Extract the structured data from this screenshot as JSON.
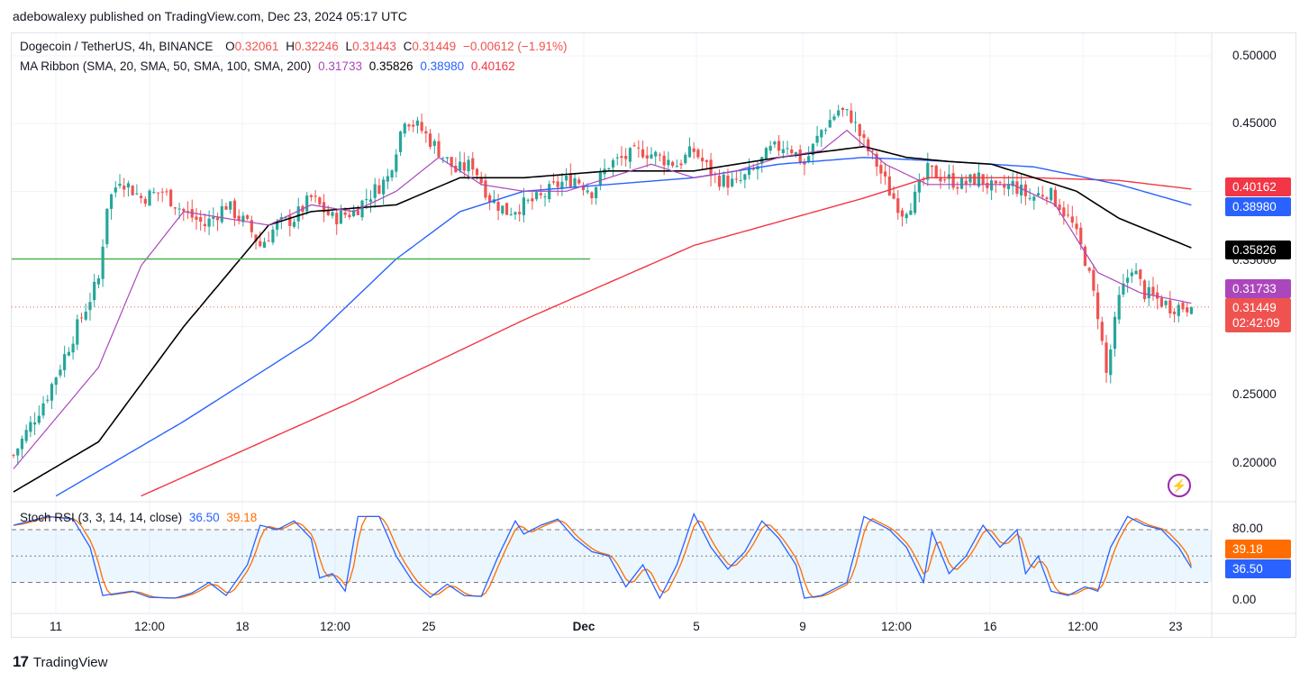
{
  "header": {
    "published": "adebowalexy published on TradingView.com, Dec 23, 2024 05:17 UTC"
  },
  "legend": {
    "symbol": "Dogecoin / TetherUS, 4h, BINANCE",
    "o_label": "O",
    "o": "0.32061",
    "h_label": "H",
    "h": "0.32246",
    "l_label": "L",
    "l": "0.31443",
    "c_label": "C",
    "c": "0.31449",
    "change": "−0.00612 (−1.91%)",
    "ma_title": "MA Ribbon (SMA, 20, SMA, 50, SMA, 100, SMA, 200)",
    "ma20": "0.31733",
    "ma50": "0.35826",
    "ma100": "0.38980",
    "ma200": "0.40162",
    "stoch_title": "Stoch RSI (3, 3, 14, 14, close)",
    "k": "36.50",
    "d": "39.18"
  },
  "price_tags": {
    "ma200": "0.40162",
    "ma100": "0.38980",
    "ma50": "0.35826",
    "ma20": "0.31733",
    "last": "0.31449",
    "countdown": "02:42:09"
  },
  "colors": {
    "up": "#26a69a",
    "down": "#ef5350",
    "ma20": "#ab47bc",
    "ma50": "#000000",
    "ma100": "#2962ff",
    "ma200": "#f23645",
    "support": "#4caf50",
    "k": "#2962ff",
    "d": "#ff6d00"
  },
  "footer": {
    "brand": "TradingView"
  },
  "chart_data": [
    {
      "type": "candlestick",
      "ylim": [
        0.175,
        0.515
      ],
      "y_ticks": [
        "0.50000",
        "0.45000",
        "0.35000",
        "0.25000",
        "0.20000"
      ],
      "x_ticks": [
        "11",
        "12:00",
        "18",
        "12:00",
        "25",
        "Dec",
        "5",
        "9",
        "12:00",
        "16",
        "12:00",
        "23"
      ],
      "anchors_close": [
        [
          0,
          0.205
        ],
        [
          8,
          0.25
        ],
        [
          15,
          0.3
        ],
        [
          20,
          0.335
        ],
        [
          22,
          0.39
        ],
        [
          25,
          0.41
        ],
        [
          30,
          0.395
        ],
        [
          35,
          0.4
        ],
        [
          40,
          0.385
        ],
        [
          45,
          0.375
        ],
        [
          50,
          0.39
        ],
        [
          55,
          0.375
        ],
        [
          58,
          0.36
        ],
        [
          62,
          0.375
        ],
        [
          66,
          0.38
        ],
        [
          70,
          0.395
        ],
        [
          75,
          0.38
        ],
        [
          80,
          0.385
        ],
        [
          83,
          0.395
        ],
        [
          88,
          0.41
        ],
        [
          92,
          0.455
        ],
        [
          96,
          0.445
        ],
        [
          100,
          0.43
        ],
        [
          104,
          0.415
        ],
        [
          108,
          0.42
        ],
        [
          112,
          0.395
        ],
        [
          116,
          0.385
        ],
        [
          120,
          0.39
        ],
        [
          124,
          0.395
        ],
        [
          128,
          0.405
        ],
        [
          132,
          0.41
        ],
        [
          136,
          0.4
        ],
        [
          140,
          0.42
        ],
        [
          144,
          0.425
        ],
        [
          148,
          0.43
        ],
        [
          152,
          0.425
        ],
        [
          156,
          0.42
        ],
        [
          160,
          0.43
        ],
        [
          165,
          0.41
        ],
        [
          170,
          0.405
        ],
        [
          174,
          0.415
        ],
        [
          178,
          0.43
        ],
        [
          182,
          0.435
        ],
        [
          186,
          0.42
        ],
        [
          190,
          0.445
        ],
        [
          194,
          0.46
        ],
        [
          197,
          0.455
        ],
        [
          200,
          0.435
        ],
        [
          203,
          0.42
        ],
        [
          206,
          0.4
        ],
        [
          209,
          0.385
        ],
        [
          212,
          0.395
        ],
        [
          215,
          0.415
        ],
        [
          219,
          0.41
        ],
        [
          223,
          0.405
        ],
        [
          227,
          0.41
        ],
        [
          231,
          0.4
        ],
        [
          235,
          0.405
        ],
        [
          239,
          0.395
        ],
        [
          243,
          0.4
        ],
        [
          246,
          0.39
        ],
        [
          249,
          0.375
        ],
        [
          252,
          0.35
        ],
        [
          255,
          0.31
        ],
        [
          257,
          0.265
        ],
        [
          260,
          0.32
        ],
        [
          263,
          0.345
        ],
        [
          266,
          0.325
        ],
        [
          269,
          0.32
        ],
        [
          272,
          0.315
        ],
        [
          275,
          0.315
        ],
        [
          277,
          0.31449
        ]
      ],
      "ma20": [
        [
          0,
          0.195
        ],
        [
          20,
          0.27
        ],
        [
          30,
          0.345
        ],
        [
          40,
          0.385
        ],
        [
          50,
          0.38
        ],
        [
          60,
          0.375
        ],
        [
          70,
          0.39
        ],
        [
          80,
          0.385
        ],
        [
          90,
          0.4
        ],
        [
          100,
          0.425
        ],
        [
          110,
          0.405
        ],
        [
          120,
          0.4
        ],
        [
          130,
          0.4
        ],
        [
          140,
          0.41
        ],
        [
          150,
          0.42
        ],
        [
          160,
          0.41
        ],
        [
          170,
          0.415
        ],
        [
          180,
          0.425
        ],
        [
          190,
          0.43
        ],
        [
          196,
          0.445
        ],
        [
          205,
          0.42
        ],
        [
          215,
          0.405
        ],
        [
          225,
          0.405
        ],
        [
          235,
          0.405
        ],
        [
          245,
          0.39
        ],
        [
          255,
          0.34
        ],
        [
          265,
          0.325
        ],
        [
          277,
          0.31733
        ]
      ],
      "ma50": [
        [
          0,
          0.178
        ],
        [
          20,
          0.215
        ],
        [
          40,
          0.3
        ],
        [
          60,
          0.375
        ],
        [
          70,
          0.385
        ],
        [
          90,
          0.39
        ],
        [
          105,
          0.41
        ],
        [
          120,
          0.41
        ],
        [
          140,
          0.415
        ],
        [
          160,
          0.415
        ],
        [
          180,
          0.425
        ],
        [
          200,
          0.433
        ],
        [
          210,
          0.425
        ],
        [
          220,
          0.422
        ],
        [
          230,
          0.42
        ],
        [
          240,
          0.41
        ],
        [
          250,
          0.4
        ],
        [
          260,
          0.38
        ],
        [
          277,
          0.35826
        ]
      ],
      "ma100": [
        [
          10,
          0.175
        ],
        [
          40,
          0.23
        ],
        [
          70,
          0.29
        ],
        [
          90,
          0.35
        ],
        [
          105,
          0.385
        ],
        [
          120,
          0.4
        ],
        [
          140,
          0.405
        ],
        [
          160,
          0.41
        ],
        [
          180,
          0.42
        ],
        [
          200,
          0.425
        ],
        [
          220,
          0.422
        ],
        [
          240,
          0.418
        ],
        [
          260,
          0.405
        ],
        [
          277,
          0.3898
        ]
      ],
      "ma200": [
        [
          30,
          0.175
        ],
        [
          80,
          0.245
        ],
        [
          120,
          0.305
        ],
        [
          160,
          0.36
        ],
        [
          200,
          0.395
        ],
        [
          215,
          0.41
        ],
        [
          240,
          0.41
        ],
        [
          260,
          0.408
        ],
        [
          277,
          0.40162
        ]
      ],
      "support_level": 0.35
    },
    {
      "type": "line",
      "title": "Stoch RSI (3, 3, 14, 14, close)",
      "ylim": [
        0,
        100
      ],
      "y_ticks": [
        "80.00",
        "0.00"
      ],
      "bands": [
        80,
        50,
        20
      ],
      "k_last": 36.5,
      "d_last": 39.18,
      "k_anchors": [
        [
          0,
          85
        ],
        [
          8,
          95
        ],
        [
          14,
          92
        ],
        [
          18,
          60
        ],
        [
          21,
          5
        ],
        [
          28,
          10
        ],
        [
          32,
          3
        ],
        [
          38,
          2
        ],
        [
          42,
          8
        ],
        [
          46,
          20
        ],
        [
          50,
          5
        ],
        [
          55,
          40
        ],
        [
          58,
          85
        ],
        [
          62,
          80
        ],
        [
          66,
          90
        ],
        [
          70,
          70
        ],
        [
          72,
          25
        ],
        [
          75,
          30
        ],
        [
          78,
          10
        ],
        [
          81,
          95
        ],
        [
          86,
          95
        ],
        [
          90,
          50
        ],
        [
          94,
          20
        ],
        [
          98,
          3
        ],
        [
          102,
          18
        ],
        [
          106,
          5
        ],
        [
          110,
          4
        ],
        [
          114,
          50
        ],
        [
          118,
          90
        ],
        [
          120,
          75
        ],
        [
          124,
          85
        ],
        [
          128,
          92
        ],
        [
          132,
          70
        ],
        [
          136,
          55
        ],
        [
          140,
          50
        ],
        [
          144,
          15
        ],
        [
          148,
          40
        ],
        [
          152,
          2
        ],
        [
          156,
          40
        ],
        [
          160,
          98
        ],
        [
          164,
          60
        ],
        [
          168,
          35
        ],
        [
          172,
          55
        ],
        [
          176,
          90
        ],
        [
          180,
          70
        ],
        [
          184,
          40
        ],
        [
          186,
          2
        ],
        [
          190,
          5
        ],
        [
          196,
          20
        ],
        [
          200,
          95
        ],
        [
          206,
          80
        ],
        [
          210,
          60
        ],
        [
          214,
          20
        ],
        [
          216,
          78
        ],
        [
          220,
          30
        ],
        [
          224,
          50
        ],
        [
          228,
          85
        ],
        [
          232,
          60
        ],
        [
          236,
          80
        ],
        [
          238,
          30
        ],
        [
          241,
          50
        ],
        [
          244,
          10
        ],
        [
          248,
          5
        ],
        [
          252,
          15
        ],
        [
          255,
          10
        ],
        [
          258,
          60
        ],
        [
          262,
          95
        ],
        [
          266,
          85
        ],
        [
          270,
          80
        ],
        [
          274,
          60
        ],
        [
          277,
          36.5
        ]
      ]
    }
  ]
}
